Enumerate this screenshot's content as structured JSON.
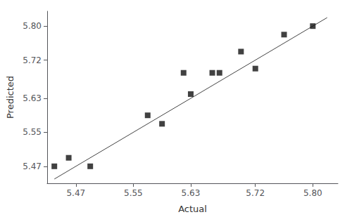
{
  "chart_data": {
    "type": "scatter",
    "xlabel": "Actual",
    "ylabel": "Predicted",
    "series": [
      {
        "type": "scatter",
        "marker": "square",
        "color": "#111111",
        "x": [
          5.44,
          5.46,
          5.49,
          5.57,
          5.59,
          5.62,
          5.63,
          5.66,
          5.67,
          5.7,
          5.72,
          5.76,
          5.8
        ],
        "values": [
          5.47,
          5.49,
          5.47,
          5.59,
          5.57,
          5.69,
          5.64,
          5.69,
          5.69,
          5.74,
          5.7,
          5.78,
          5.8
        ]
      },
      {
        "type": "line",
        "color": "#444444",
        "x": [
          5.44,
          5.82
        ],
        "values": [
          5.44,
          5.82
        ]
      }
    ],
    "xlim": [
      5.43,
      5.835
    ],
    "ylim": [
      5.43,
      5.835
    ],
    "xticks": [
      5.47,
      5.55,
      5.63,
      5.72,
      {
        "value": 5.8,
        "label": "5.80"
      }
    ],
    "yticks": [
      5.47,
      5.55,
      5.63,
      5.72,
      {
        "value": 5.8,
        "label": "5.80"
      }
    ],
    "grid": false
  }
}
